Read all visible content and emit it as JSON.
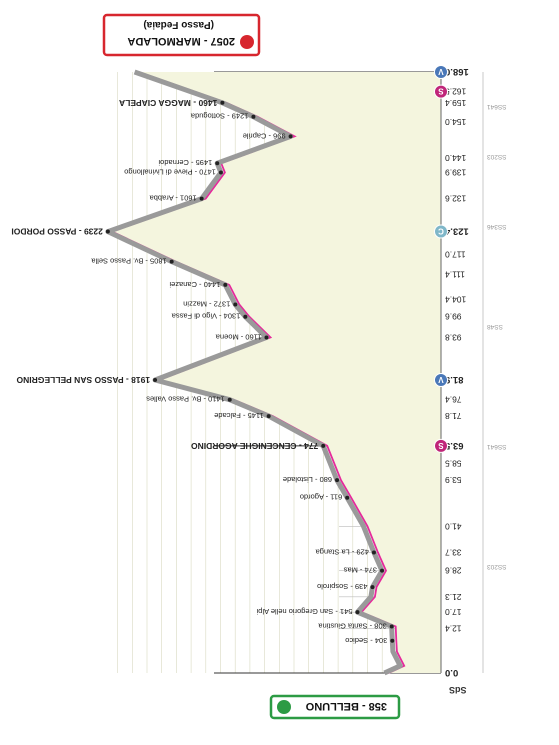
{
  "chart_data": {
    "type": "area",
    "title": "",
    "start": {
      "label": "358 - BELLUNO",
      "km": 0.0,
      "alt": 358
    },
    "finish": {
      "label": "2057 - MARMOLADA",
      "sublabel": "(Passo Fedaia)",
      "km": 168.0,
      "alt": 2057
    },
    "xlabel": "",
    "ylabel": "",
    "xlim": [
      0,
      168
    ],
    "ylim": [
      0,
      2300
    ],
    "right_codes": [
      "SS203",
      "SS641",
      "SS48",
      "SS346",
      "SS203",
      "SS641"
    ],
    "top_label": "SdS",
    "km_ticks": [
      0.0,
      12.4,
      17.0,
      21.3,
      28.6,
      33.7,
      41.0,
      53.9,
      58.5,
      63.5,
      71.8,
      76.4,
      81.9,
      93.8,
      99.6,
      104.4,
      111.4,
      117.0,
      123.4,
      132.6,
      139.9,
      144.0,
      154.0,
      159.4,
      162.5,
      168.0
    ],
    "bold_km": [
      0.0,
      63.5,
      81.9,
      123.4,
      168.0
    ],
    "points": [
      {
        "km": 0.0,
        "alt": 358,
        "label": ""
      },
      {
        "km": 2.0,
        "alt": 250,
        "label": ""
      },
      {
        "km": 6.0,
        "alt": 300,
        "label": ""
      },
      {
        "km": 9.0,
        "alt": 304,
        "label": "304 - Sedico"
      },
      {
        "km": 13.0,
        "alt": 308,
        "label": "308 - Santa Giustina"
      },
      {
        "km": 17.0,
        "alt": 541,
        "label": "541 - San Gregorio nelle Alpi"
      },
      {
        "km": 21.3,
        "alt": 450,
        "label": ""
      },
      {
        "km": 24.0,
        "alt": 439,
        "label": "439 - Sospirolo"
      },
      {
        "km": 28.6,
        "alt": 374,
        "label": "374 - Mas"
      },
      {
        "km": 33.7,
        "alt": 429,
        "label": "429 - La Stanga"
      },
      {
        "km": 41.0,
        "alt": 500,
        "label": ""
      },
      {
        "km": 49.0,
        "alt": 611,
        "label": "611 - Agordo"
      },
      {
        "km": 53.9,
        "alt": 680,
        "label": "680 - Listolade"
      },
      {
        "km": 63.5,
        "alt": 774,
        "label": "774 - CENCENIGHE AGORDINO"
      },
      {
        "km": 71.8,
        "alt": 1145,
        "label": "1145 - Falcade"
      },
      {
        "km": 76.4,
        "alt": 1410,
        "label": "1410 - Bv. Passo Valles"
      },
      {
        "km": 81.9,
        "alt": 1918,
        "label": "1918 - PASSO SAN PELLEGRINO"
      },
      {
        "km": 93.8,
        "alt": 1160,
        "label": "1160 - Moena"
      },
      {
        "km": 99.6,
        "alt": 1304,
        "label": "1304 - Vigo di Fassa"
      },
      {
        "km": 103.0,
        "alt": 1372,
        "label": "1372 - Mazzin"
      },
      {
        "km": 108.5,
        "alt": 1440,
        "label": "1440 - Canazei"
      },
      {
        "km": 115.0,
        "alt": 1805,
        "label": "1805 - Bv. Passo Sella"
      },
      {
        "km": 123.4,
        "alt": 2239,
        "label": "2239 - PASSO PORDOI"
      },
      {
        "km": 132.6,
        "alt": 1601,
        "label": "1601 - Arabba"
      },
      {
        "km": 139.9,
        "alt": 1470,
        "label": "1470 - Pieve di Livinallongo"
      },
      {
        "km": 142.5,
        "alt": 1495,
        "label": "1495 - Cernadoi"
      },
      {
        "km": 150.0,
        "alt": 996,
        "label": "996 - Caprile"
      },
      {
        "km": 155.5,
        "alt": 1249,
        "label": "1249 - Sottoguda"
      },
      {
        "km": 159.4,
        "alt": 1460,
        "label": "1460 - MAGGA CIAPELA"
      },
      {
        "km": 168.0,
        "alt": 2057,
        "label": ""
      }
    ],
    "grid_alts": [
      0,
      100,
      200,
      300,
      400,
      500,
      600,
      700,
      800,
      900,
      1000,
      1100,
      1200,
      1300,
      1400,
      1500,
      1600,
      1700,
      1800,
      1900,
      2000,
      2100,
      2200
    ],
    "markers": [
      {
        "km": 0.0,
        "type": "start",
        "color": "#3a9a3a",
        "label": ""
      },
      {
        "km": 63.5,
        "type": "sprint",
        "color": "#c0267a",
        "label": "S"
      },
      {
        "km": 81.9,
        "type": "feed",
        "color": "#4a78b8",
        "label": "V"
      },
      {
        "km": 123.4,
        "type": "climb",
        "color": "#7fb7c9",
        "label": "C"
      },
      {
        "km": 162.5,
        "type": "sprint",
        "color": "#c0267a",
        "label": "S"
      },
      {
        "km": 168.0,
        "type": "finish",
        "color": "#4a78b8",
        "label": "V"
      }
    ],
    "colors": {
      "profile": "#e52a9b",
      "fill": "#f4f5de",
      "road": "#9a9a9a",
      "start": "#2c9b44",
      "finish": "#d7262e"
    }
  }
}
